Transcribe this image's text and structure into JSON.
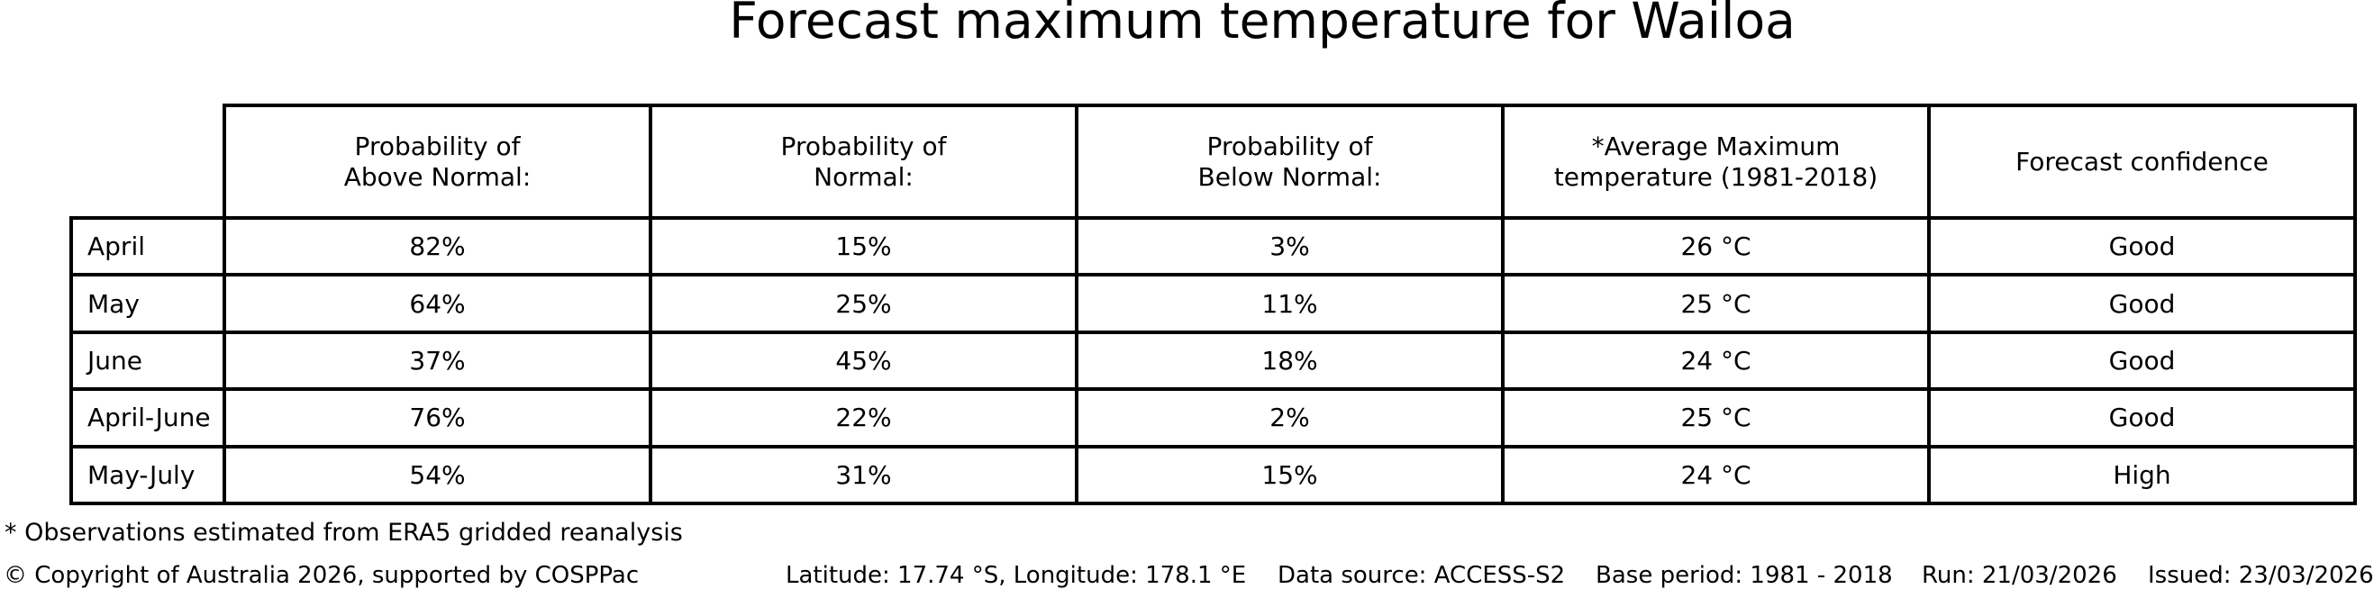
{
  "title": "Forecast maximum temperature for Wailoa",
  "colors": {
    "text": "#000000",
    "border": "#000000",
    "background": "#ffffff"
  },
  "table": {
    "header": {
      "above": "Probability of\nAbove Normal:",
      "normal": "Probability of\nNormal:",
      "below": "Probability of\nBelow Normal:",
      "avg_max": "*Average Maximum\ntemperature (1981-2018)",
      "confidence": "Forecast confidence"
    },
    "rows": [
      {
        "period": "April",
        "above": "82%",
        "normal": "15%",
        "below": "3%",
        "avg_max": "26 °C",
        "confidence": "Good"
      },
      {
        "period": "May",
        "above": "64%",
        "normal": "25%",
        "below": "11%",
        "avg_max": "25 °C",
        "confidence": "Good"
      },
      {
        "period": "June",
        "above": "37%",
        "normal": "45%",
        "below": "18%",
        "avg_max": "24 °C",
        "confidence": "Good"
      },
      {
        "period": "April-June",
        "above": "76%",
        "normal": "22%",
        "below": "2%",
        "avg_max": "25 °C",
        "confidence": "Good"
      },
      {
        "period": "May-July",
        "above": "54%",
        "normal": "31%",
        "below": "15%",
        "avg_max": "24 °C",
        "confidence": "High"
      }
    ]
  },
  "footnote": "* Observations estimated from ERA5 gridded reanalysis",
  "footer": {
    "copyright": "© Copyright of Australia 2026, supported by COSPPac",
    "coordinates": "Latitude: 17.74 °S, Longitude: 178.1 °E",
    "data_source": "Data source: ACCESS-S2",
    "base_period": "Base period: 1981 - 2018",
    "run": "Run: 21/03/2026",
    "issued": "Issued: 23/03/2026"
  },
  "chart_data": {
    "type": "table",
    "title": "Forecast maximum temperature for Wailoa",
    "row_labels": [
      "April",
      "May",
      "June",
      "April-June",
      "May-July"
    ],
    "columns": [
      "Probability of Above Normal:",
      "Probability of Normal:",
      "Probability of Below Normal:",
      "*Average Maximum temperature (1981-2018)",
      "Forecast confidence"
    ],
    "rows": [
      [
        "82%",
        "15%",
        "3%",
        "26 °C",
        "Good"
      ],
      [
        "64%",
        "25%",
        "11%",
        "25 °C",
        "Good"
      ],
      [
        "37%",
        "45%",
        "18%",
        "24 °C",
        "Good"
      ],
      [
        "76%",
        "22%",
        "2%",
        "25 °C",
        "Good"
      ],
      [
        "54%",
        "31%",
        "15%",
        "24 °C",
        "High"
      ]
    ],
    "notes": {
      "footnote": "* Observations estimated from ERA5 gridded reanalysis",
      "latitude": "17.74 °S",
      "longitude": "178.1 °E",
      "data_source": "ACCESS-S2",
      "base_period": "1981 - 2018",
      "run_date": "21/03/2026",
      "issued_date": "23/03/2026"
    }
  }
}
